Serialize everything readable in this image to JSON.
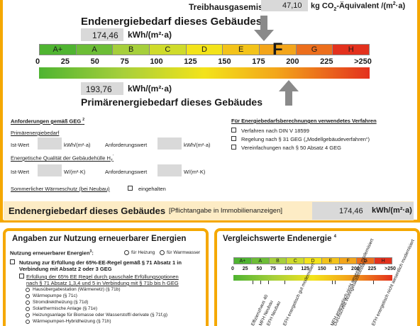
{
  "top": {
    "ghg_label": "Treibhausgasemissionen",
    "ghg_value": "47,10",
    "ghg_unit_pre": "kg CO",
    "ghg_unit_sub": "2",
    "ghg_unit_post": "-Äquivalent /(m",
    "ghg_unit_sup": "2",
    "ghg_unit_end": "·a)",
    "end_title": "Endenergiebedarf dieses Gebäudes",
    "end_value": "174,46",
    "end_unit": "kWh/(m²·a)",
    "primary_value": "193,76",
    "primary_unit": "kWh/(m²·a)",
    "primary_title": "Primärenergiebedarf dieses Gebäudes",
    "current_class": "F"
  },
  "scale": {
    "classes": [
      "A+",
      "A",
      "B",
      "C",
      "D",
      "E",
      "F",
      "G",
      "H"
    ],
    "class_colors": [
      "#4fb431",
      "#6cbd36",
      "#a6cf3b",
      "#cfdb2b",
      "#f3e31a",
      "#f3c31a",
      "#f3a51a",
      "#ec6e1c",
      "#e3311d"
    ],
    "ticks": [
      "0",
      "25",
      "50",
      "75",
      "100",
      "125",
      "150",
      "175",
      "200",
      "225",
      ">250"
    ]
  },
  "requirements": {
    "title": "Anforderungen gemäß GEG",
    "title_sup": "2",
    "primary_heading": "Primärenergiebedarf",
    "ist_wert": "Ist-Wert",
    "unit_kwh": "kWh/(m²·a)",
    "anforderungswert": "Anforderungswert",
    "envelope_heading": "Energetische Qualität der Gebäudehülle H",
    "envelope_sub": "T",
    "envelope_sup": "'",
    "unit_wm2k": "W/(m²·K)",
    "summer_label": "Sommerlicher Wärmeschutz (bei Neubau)",
    "summer_check": "eingehalten"
  },
  "procedures": {
    "title": "Für Energiebedarfsberechnungen verwendetes Verfahren",
    "items": [
      {
        "label": "Verfahren nach DIN V 18599",
        "checked": true
      },
      {
        "label": "Regelung nach § 31 GEG („Modellgebäudeverfahren“)",
        "checked": false
      },
      {
        "label": "Vereinfachungen nach § 50 Absatz 4 GEG",
        "checked": true
      }
    ]
  },
  "summary": {
    "title": "Endenergiebedarf dieses Gebäudes",
    "note": "[Pflichtangabe in Immobilienanzeigen]",
    "value": "174,46",
    "unit": "kWh/(m²·a)"
  },
  "renewables": {
    "title": "Angaben zur Nutzung erneuerbarer Energien",
    "usage_label": "Nutzung erneuerbarer Energien",
    "usage_sup": "3",
    "heating": "für Heizung",
    "hot_water": "für Warmwasser",
    "rule_line1": "Nutzung zur Erfüllung der 65%-EE-Regel gemäß § 71 Absatz 1 in",
    "rule_line2": "Verbindung mit Absatz 2 oder 3 GEG",
    "fulfil_line1": "Erfüllung der 65% EE Regel durch pauschale Erfüllungsoptionen",
    "fulfil_line2": "nach § 71 Absatz 1,3,4 und 5 in Verbindung mit § 71b bis h GEG",
    "options": [
      "Hausübergabestation (Wärmenetz) (§ 71b)",
      "Wärmepumpe (§ 71c)",
      "Stromdirektheizung (§ 71d)",
      "Solarthermische Anlage (§ 71e)",
      "Heizungsanlage für Biomasse oder Wasserstoff/-derivate (§ 71f,g)",
      "Wärmepumpen-Hybridheizung (§ 71h)"
    ]
  },
  "comparison": {
    "title": "Vergleichswerte Endenergie",
    "title_sup": "4",
    "classes": [
      "A+",
      "A",
      "B",
      "C",
      "D",
      "E",
      "F",
      "G",
      "H"
    ],
    "ticks": [
      "0",
      "25",
      "50",
      "75",
      "100",
      "125",
      "150",
      "175",
      "200",
      "225",
      ">250"
    ],
    "references": [
      {
        "label": "Effizienzhaus 40",
        "value": 30
      },
      {
        "label": "MFH Neubau",
        "value": 42
      },
      {
        "label": "EFH Neubau",
        "value": 55
      },
      {
        "label": "EFH energetisch gut modernisiert",
        "value": 80
      },
      {
        "label": "Durchschnitt Wohngebäudebestand",
        "value": 160
      },
      {
        "label": "MFH energetisch nicht wesentlich modernisiert",
        "value": 155
      },
      {
        "label": "EFH energetisch nicht wesentlich modernisiert",
        "value": 220
      }
    ]
  }
}
